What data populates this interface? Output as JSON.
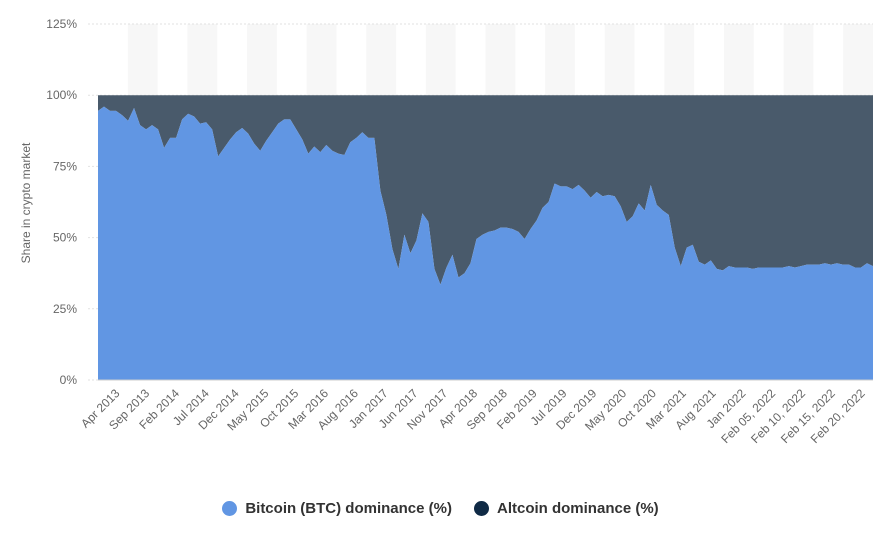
{
  "chart_data": {
    "type": "area",
    "ylabel": "Share in crypto market",
    "ylim": [
      0,
      125
    ],
    "y_ticks": [
      "0%",
      "25%",
      "50%",
      "75%",
      "100%",
      "125%"
    ],
    "x_tick_labels": [
      "Apr 2013",
      "Sep 2013",
      "Feb 2014",
      "Jul 2014",
      "Dec 2014",
      "May 2015",
      "Oct 2015",
      "Mar 2016",
      "Aug 2016",
      "Jan 2017",
      "Jun 2017",
      "Nov 2017",
      "Apr 2018",
      "Sep 2018",
      "Feb 2019",
      "Jul 2019",
      "Dec 2019",
      "May 2020",
      "Oct 2020",
      "Mar 2021",
      "Aug 2021",
      "Jan 2022",
      "Feb 05, 2022",
      "Feb 10, 2022",
      "Feb 15, 2022",
      "Feb 20, 2022"
    ],
    "grid": true,
    "legend_position": "bottom-center",
    "series": [
      {
        "name": "Bitcoin (BTC) dominance (%)",
        "color": "#6196e3",
        "values": [
          94.5,
          96,
          94.5,
          94.5,
          93,
          91,
          95.5,
          89.5,
          88,
          89.5,
          88,
          81.5,
          85,
          85,
          91.5,
          93.5,
          92.5,
          90,
          90.5,
          88,
          78.5,
          81.5,
          84.5,
          87,
          88.5,
          86.5,
          83,
          80.5,
          84,
          87,
          90,
          91.5,
          91.5,
          88,
          84.5,
          79.5,
          82,
          80,
          82.5,
          80.5,
          79.5,
          79,
          83.5,
          85,
          87,
          85,
          85,
          66.5,
          58,
          46,
          39,
          51,
          44.5,
          49,
          58.5,
          55.5,
          39,
          33.5,
          39.5,
          44,
          36,
          37.5,
          41,
          49.5,
          51,
          52,
          52.5,
          53.5,
          53.5,
          53,
          52,
          49.5,
          53,
          56,
          60.5,
          62.5,
          69,
          68,
          68,
          67,
          68.5,
          66.5,
          64,
          66,
          64.5,
          65,
          64.5,
          61,
          55.5,
          57.5,
          62,
          59.5,
          68.5,
          61.5,
          59.5,
          58,
          46.5,
          40,
          46.5,
          47.5,
          41.5,
          40.5,
          42,
          39,
          38.5,
          40,
          39.5,
          39.5,
          39.5,
          39,
          39.5,
          39.5,
          39.5,
          39.5,
          39.5,
          40,
          39.5,
          40,
          40.5,
          40.5,
          40.5,
          41,
          40.5,
          41,
          40.5,
          40.5,
          39.5,
          39.5,
          41,
          40
        ]
      },
      {
        "name": "Altcoin dominance (%)",
        "color": "#0f2a45",
        "values_note": "complement to 100 of Bitcoin dominance"
      }
    ]
  }
}
